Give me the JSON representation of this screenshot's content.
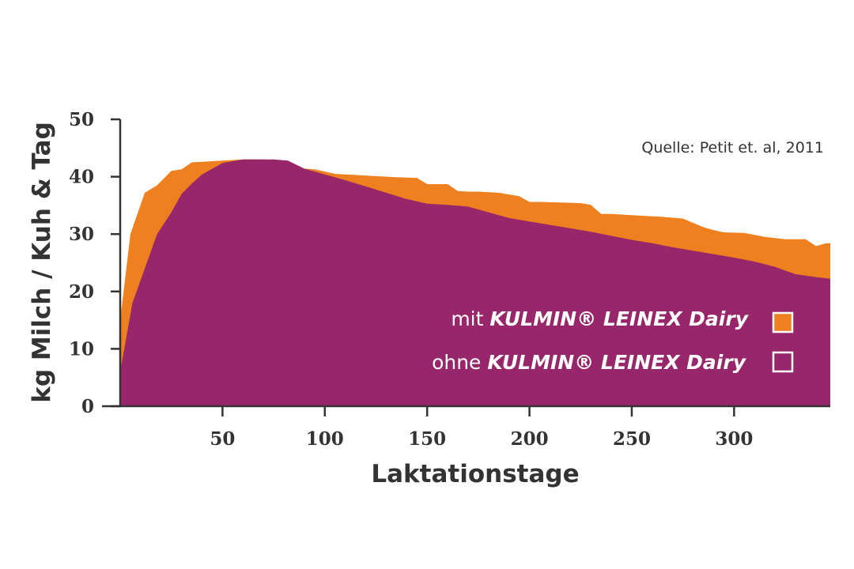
{
  "chart_data": {
    "type": "area",
    "title": "",
    "xlabel": "Laktationstage",
    "ylabel": "kg Milch / Kuh & Tag",
    "source": "Quelle: Petit et. al, 2011",
    "xlim": [
      0,
      347
    ],
    "ylim": [
      0,
      50
    ],
    "xticks": [
      50,
      100,
      150,
      200,
      250,
      300
    ],
    "yticks": [
      0,
      10,
      20,
      30,
      40,
      50
    ],
    "grid": false,
    "legend_position": "bottom-right",
    "series": [
      {
        "name": "mit KULMIN® LEINEX Dairy",
        "legend_prefix": "mit ",
        "legend_product": "KULMIN® LEINEX Dairy",
        "color": "#ee8020",
        "x": [
          0,
          5,
          12,
          18,
          25,
          30,
          35,
          40,
          50,
          60,
          70,
          80,
          85,
          95,
          105,
          115,
          125,
          135,
          145,
          150,
          155,
          160,
          165,
          170,
          175,
          185,
          195,
          200,
          205,
          215,
          225,
          230,
          235,
          240,
          245,
          255,
          265,
          275,
          285,
          290,
          295,
          305,
          315,
          325,
          335,
          340,
          345,
          347
        ],
        "values": [
          15,
          30,
          37.2,
          38.5,
          41,
          41.3,
          42.5,
          42.6,
          42.8,
          43,
          43,
          42.8,
          41.5,
          41.3,
          40.5,
          40.3,
          40.1,
          39.9,
          39.8,
          38.7,
          38.7,
          38.7,
          37.5,
          37.4,
          37.4,
          37.2,
          36.6,
          35.6,
          35.6,
          35.5,
          35.4,
          35.1,
          33.5,
          33.5,
          33.4,
          33.2,
          33,
          32.7,
          31.2,
          30.7,
          30.3,
          30.2,
          29.5,
          29.1,
          29.1,
          27.9,
          28.4,
          28.4
        ]
      },
      {
        "name": "ohne KULMIN® LEINEX Dairy",
        "legend_prefix": "ohne ",
        "legend_product": "KULMIN® LEINEX Dairy",
        "color": "#97276a",
        "x": [
          0,
          6,
          12,
          18,
          25,
          30,
          35,
          40,
          50,
          60,
          68,
          75,
          82,
          90,
          100,
          110,
          120,
          130,
          140,
          150,
          160,
          170,
          180,
          190,
          200,
          210,
          220,
          230,
          240,
          250,
          260,
          270,
          280,
          290,
          300,
          310,
          320,
          330,
          340,
          347
        ],
        "values": [
          6,
          18,
          24,
          30,
          33.8,
          37,
          38.8,
          40.4,
          42.4,
          43,
          43,
          43,
          42.8,
          41.4,
          40.4,
          39.4,
          38.3,
          37.2,
          36.1,
          35.3,
          35.1,
          34.8,
          33.8,
          32.8,
          32.2,
          31.6,
          31,
          30.4,
          29.7,
          29,
          28.4,
          27.7,
          27.1,
          26.5,
          25.9,
          25.2,
          24.3,
          23,
          22.5,
          22.2
        ]
      }
    ]
  }
}
